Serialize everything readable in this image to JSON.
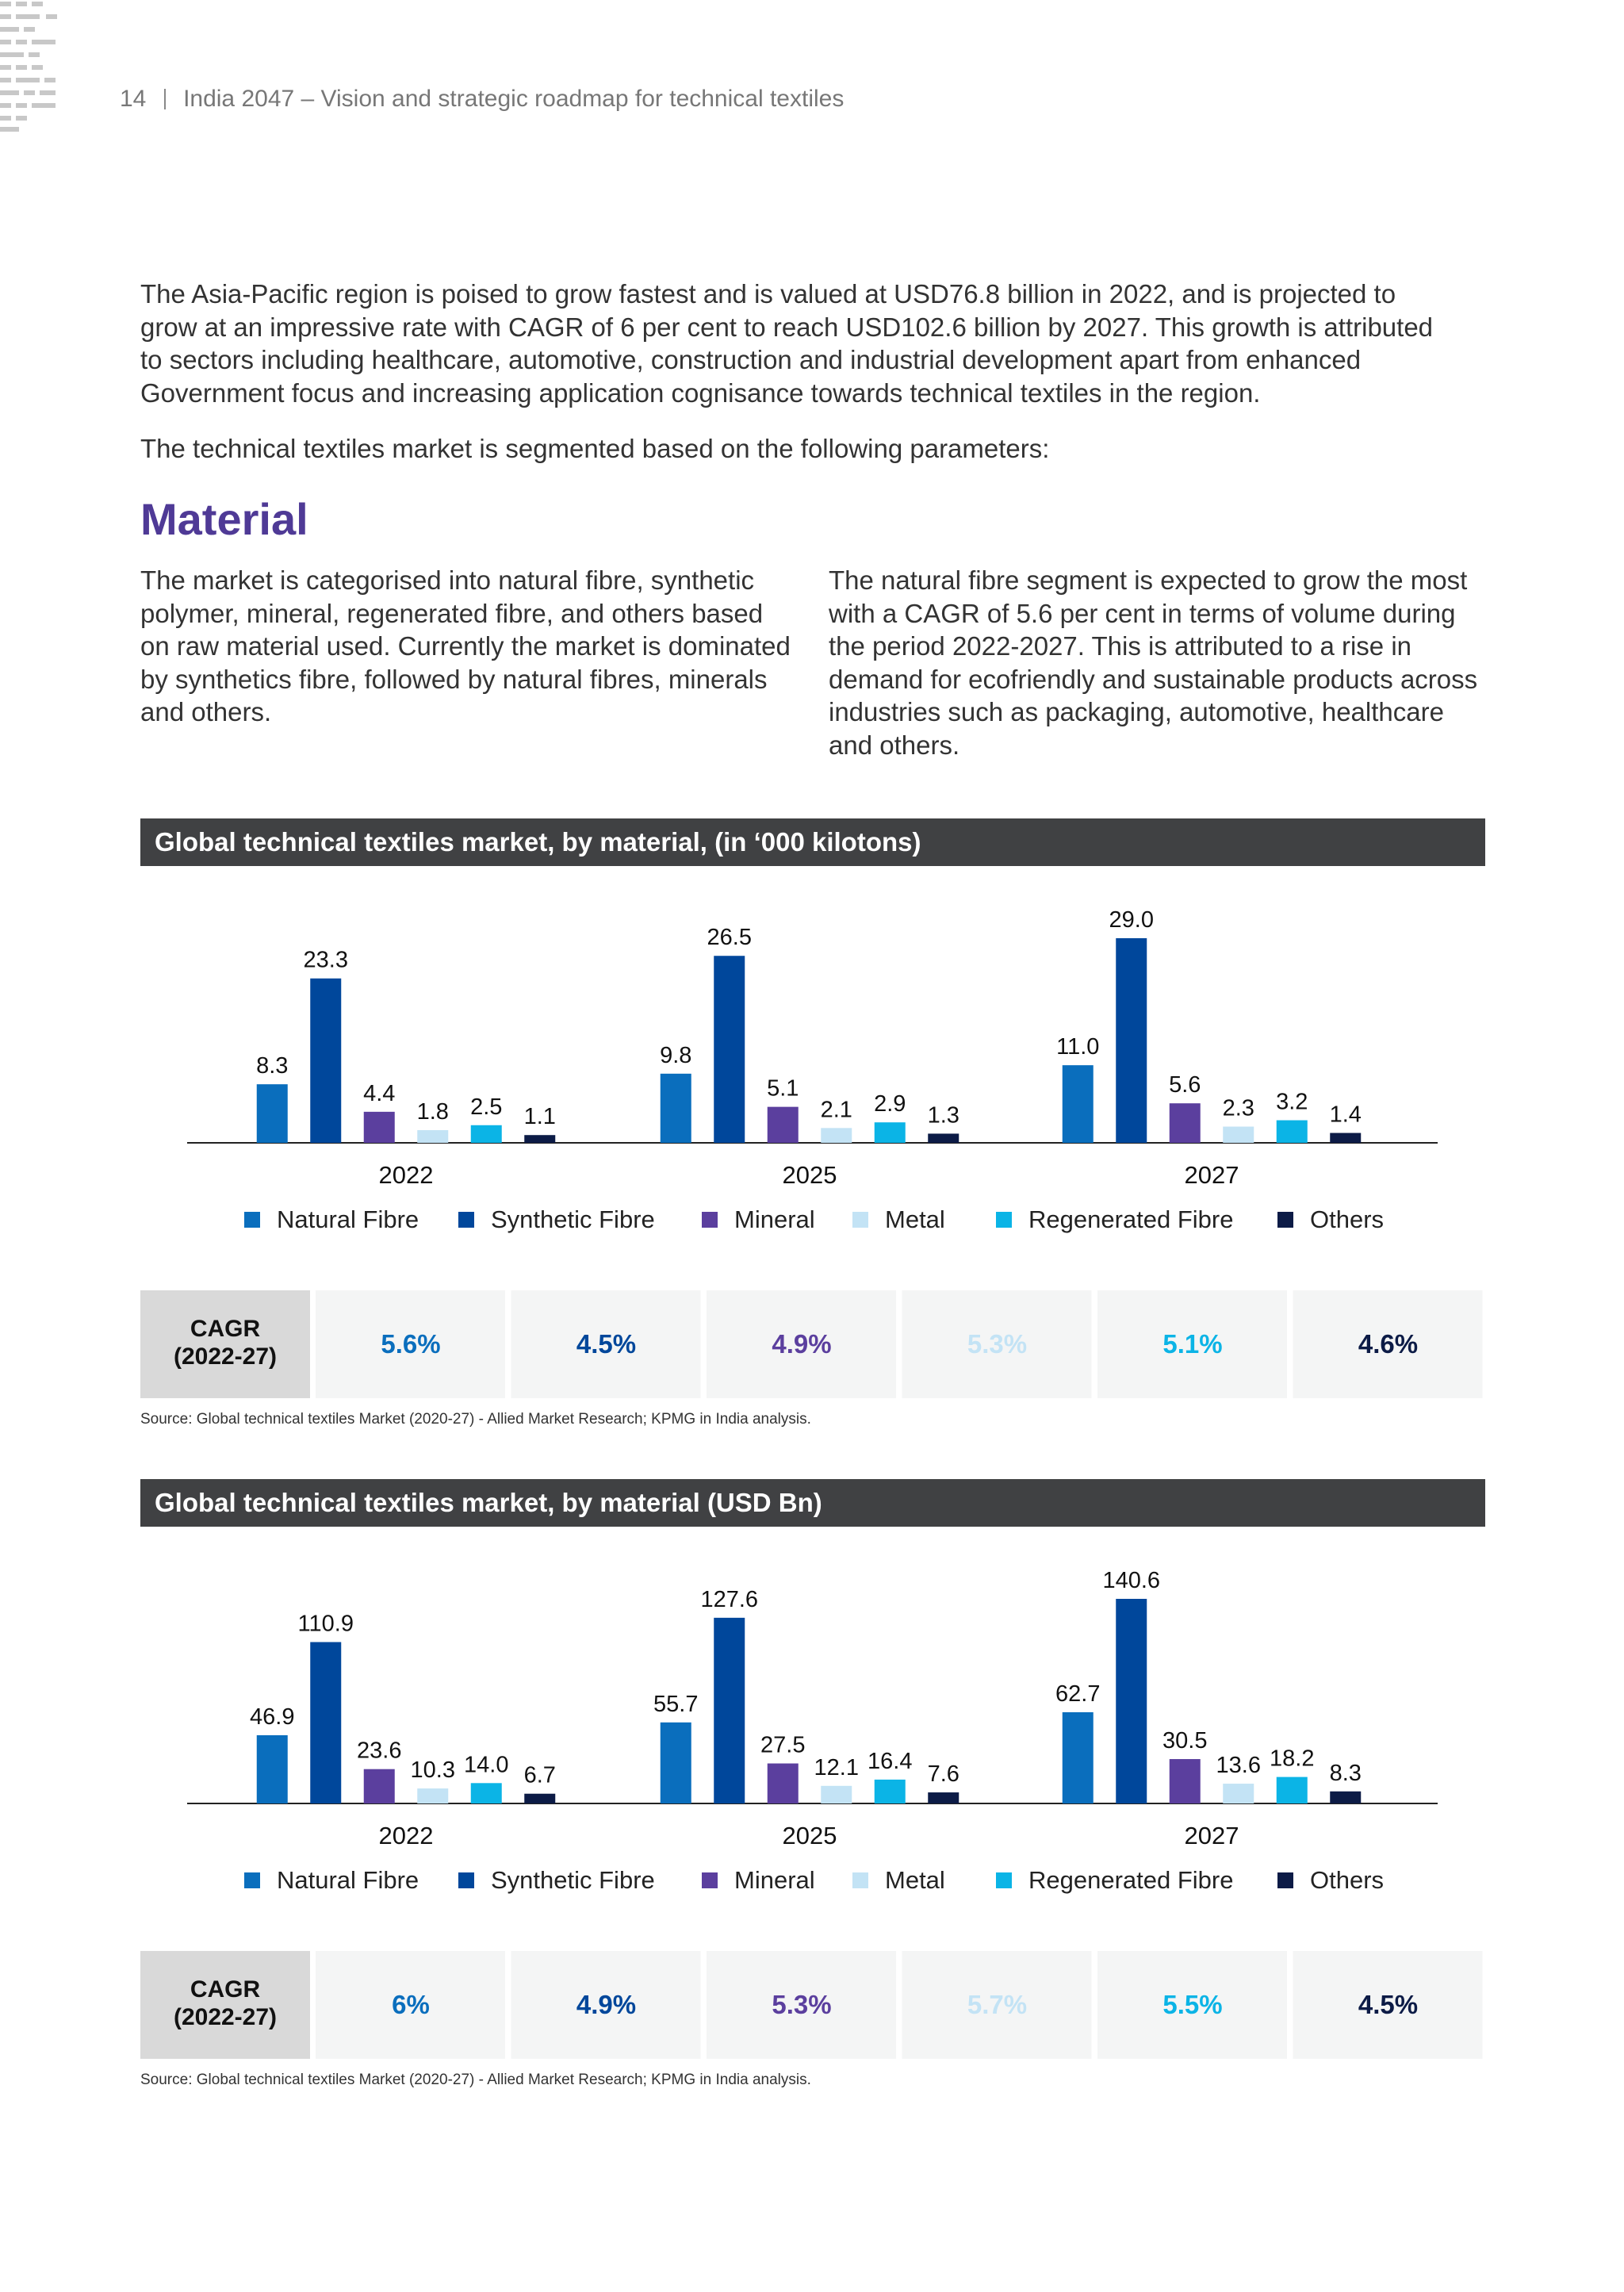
{
  "header": {
    "page": "14",
    "title": "India 2047 – Vision and strategic roadmap for technical textiles"
  },
  "paragraphs": [
    "The Asia-Pacific region is poised to grow fastest and is valued at USD76.8 billion in 2022, and is projected to grow at an impressive rate with CAGR of 6 per cent to reach USD102.6 billion by 2027. This growth is attributed to sectors including healthcare, automotive, construction and industrial development apart from enhanced Government focus and increasing application cognisance towards technical textiles in the region.",
    "The technical textiles market is segmented based on the following parameters:"
  ],
  "section": {
    "heading": "Material",
    "columns": [
      "The market is categorised into natural fibre, synthetic polymer, mineral, regenerated fibre, and others based on raw material used. Currently the market is dominated by synthetics fibre, followed by natural fibres, minerals and others.",
      "The natural fibre segment is expected to grow the most with a CAGR of 5.6 per cent in terms of volume during the period 2022-2027. This is attributed to a rise in demand for ecofriendly and sustainable products across industries such as packaging, automotive, healthcare and others."
    ]
  },
  "chart_data": [
    {
      "type": "bar",
      "title": "Global technical textiles market, by material, (in ‘000 kilotons)",
      "categories": [
        "2022",
        "2025",
        "2027"
      ],
      "series": [
        {
          "name": "Natural Fibre",
          "color": "#0a6ebd",
          "values": [
            8.3,
            9.8,
            11.0
          ],
          "value_labels": [
            "8.3",
            "9.8",
            "11.0"
          ]
        },
        {
          "name": "Synthetic Fibre",
          "color": "#00479b",
          "values": [
            23.3,
            26.5,
            29.0
          ],
          "value_labels": [
            "23.3",
            "26.5",
            "29.0"
          ]
        },
        {
          "name": "Mineral",
          "color": "#5b3f9e",
          "values": [
            4.4,
            5.1,
            5.6
          ]
        },
        {
          "name": "Metal",
          "color": "#c3e3f5",
          "values": [
            1.8,
            2.1,
            2.3
          ]
        },
        {
          "name": "Regenerated Fibre",
          "color": "#0bb4e6",
          "values": [
            2.5,
            2.9,
            3.2
          ]
        },
        {
          "name": "Others",
          "color": "#0c1b46",
          "values": [
            1.1,
            1.3,
            1.4
          ]
        }
      ],
      "cagr": {
        "label": [
          "CAGR",
          "(2022-27)"
        ],
        "values": [
          "5.6%",
          "4.5%",
          "4.9%",
          "5.3%",
          "5.1%",
          "4.6%"
        ]
      },
      "source": "Source: Global technical textiles Market (2020-27) - Allied Market Research; KPMG in India analysis."
    },
    {
      "type": "bar",
      "title": "Global technical textiles market, by material (USD Bn)",
      "categories": [
        "2022",
        "2025",
        "2027"
      ],
      "series": [
        {
          "name": "Natural Fibre",
          "color": "#0a6ebd",
          "values": [
            46.9,
            55.7,
            62.7
          ]
        },
        {
          "name": "Synthetic Fibre",
          "color": "#00479b",
          "values": [
            110.9,
            127.6,
            140.6
          ]
        },
        {
          "name": "Mineral",
          "color": "#5b3f9e",
          "values": [
            23.6,
            27.5,
            30.5
          ]
        },
        {
          "name": "Metal",
          "color": "#c3e3f5",
          "values": [
            10.3,
            12.1,
            13.6
          ]
        },
        {
          "name": "Regenerated Fibre",
          "color": "#0bb4e6",
          "values": [
            14.0,
            16.4,
            18.2
          ],
          "value_labels": [
            "14.0",
            "16.4",
            "18.2"
          ]
        },
        {
          "name": "Others",
          "color": "#0c1b46",
          "values": [
            6.7,
            7.6,
            8.3
          ]
        }
      ],
      "cagr": {
        "label": [
          "CAGR",
          "(2022-27)"
        ],
        "values": [
          "6%",
          "4.9%",
          "5.3%",
          "5.7%",
          "5.5%",
          "4.5%"
        ]
      },
      "source": "Source: Global technical textiles Market (2020-27) - Allied Market Research; KPMG in India analysis."
    }
  ]
}
